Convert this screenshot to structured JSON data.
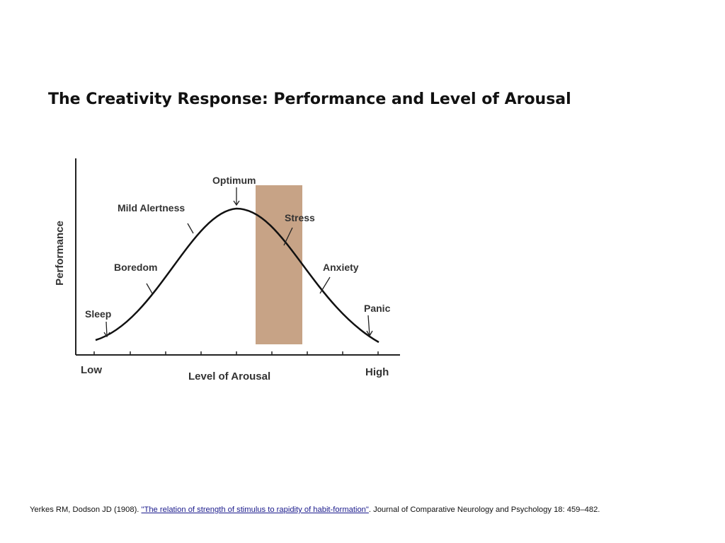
{
  "title": "The Creativity Response: Performance and Level of Arousal",
  "diagram": {
    "y_axis_label": "Performance",
    "x_axis_label": "Level of Arousal",
    "x_low": "Low",
    "x_high": "High",
    "curve_labels": {
      "sleep": "Sleep",
      "boredom": "Boredom",
      "mild_alertness": "Mild Alertness",
      "optimum": "Optimum",
      "stress": "Stress",
      "anxiety": "Anxiety",
      "panic": "Panic"
    },
    "stress_band_color": "#c7a386",
    "curve_color": "#111111"
  },
  "citation": {
    "prefix": "Yerkes RM, Dodson JD (1908). ",
    "link_text": "\"The relation of strength of stimulus to rapidity of habit-formation\"",
    "suffix": ". Journal of Comparative Neurology and Psychology 18: 459–482."
  }
}
